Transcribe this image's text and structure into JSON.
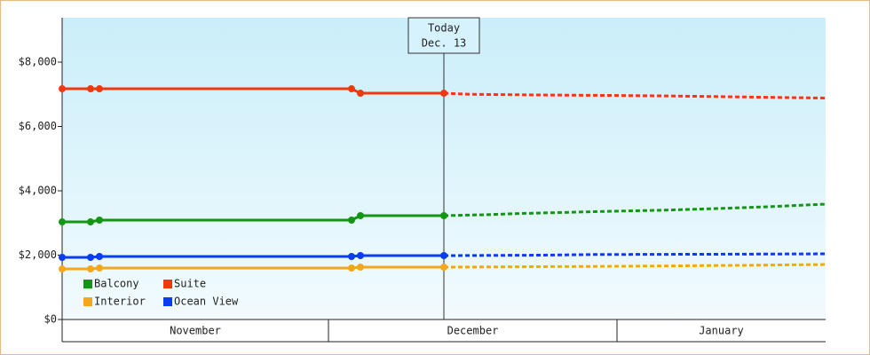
{
  "chart_data": {
    "type": "line",
    "ylim": [
      0,
      9380
    ],
    "yticks": [
      {
        "value": 0,
        "label": "$0"
      },
      {
        "value": 2000,
        "label": "$2,000"
      },
      {
        "value": 4000,
        "label": "$4,000"
      },
      {
        "value": 6000,
        "label": "$6,000"
      },
      {
        "value": 8000,
        "label": "$8,000"
      }
    ],
    "xlim": [
      0,
      86
    ],
    "months": [
      {
        "label": "November",
        "start": 0,
        "end": 30
      },
      {
        "label": "December",
        "start": 30,
        "end": 62.5
      },
      {
        "label": "January",
        "start": 62.5,
        "end": 86
      }
    ],
    "today": {
      "x": 43,
      "label": "Today",
      "date": "Dec. 13"
    },
    "legend": "bottom-left",
    "series": [
      {
        "name": "Balcony",
        "color": "#139613",
        "x": [
          0,
          3.2,
          4.2,
          32.6,
          33.6,
          43
        ],
        "values": [
          3034,
          3034,
          3090,
          3090,
          3228,
          3228
        ],
        "forecast_x": [
          43,
          48,
          51,
          61,
          68,
          75,
          80,
          86
        ],
        "forecast_values": [
          3228,
          3260,
          3290,
          3360,
          3400,
          3460,
          3510,
          3586
        ]
      },
      {
        "name": "Suite",
        "color": "#f0380e",
        "x": [
          0,
          3.2,
          4.2,
          32.6,
          33.6,
          43
        ],
        "values": [
          7172,
          7172,
          7172,
          7172,
          7034,
          7034
        ],
        "forecast_x": [
          43,
          46,
          54,
          62,
          68,
          75,
          86
        ],
        "forecast_values": [
          7034,
          7000,
          6979,
          6965,
          6950,
          6924,
          6883
        ]
      },
      {
        "name": "Interior",
        "color": "#f5a71c",
        "x": [
          0,
          3.2,
          4.2,
          32.6,
          33.6,
          43
        ],
        "values": [
          1572,
          1572,
          1600,
          1600,
          1628,
          1628
        ],
        "forecast_x": [
          43,
          60,
          75,
          86
        ],
        "forecast_values": [
          1628,
          1650,
          1680,
          1710
        ]
      },
      {
        "name": "Ocean View",
        "color": "#0a3cf0",
        "x": [
          0,
          3.2,
          4.2,
          32.6,
          33.6,
          43
        ],
        "values": [
          1931,
          1931,
          1959,
          1959,
          1986,
          1986
        ],
        "forecast_x": [
          43,
          54,
          60,
          75,
          86
        ],
        "forecast_values": [
          1986,
          2000,
          2020,
          2030,
          2041
        ]
      }
    ]
  }
}
